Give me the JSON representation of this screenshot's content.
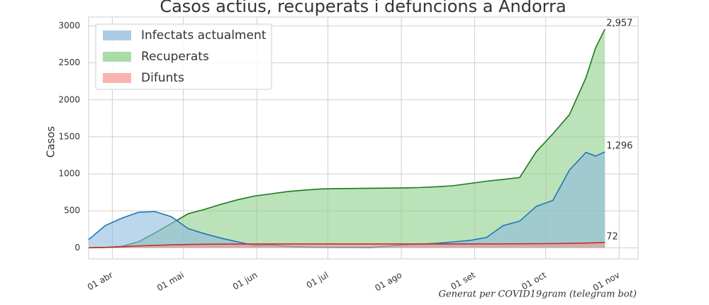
{
  "chart_data": {
    "type": "area",
    "title": "Casos actius, recuperats i defuncions a Andorra",
    "ylabel": "Casos",
    "footer": "Generat per COVID19gram (telegram bot)",
    "x": [
      "03-22",
      "03-29",
      "04-05",
      "04-12",
      "04-19",
      "04-26",
      "05-03",
      "05-10",
      "05-17",
      "05-24",
      "05-31",
      "06-07",
      "06-14",
      "06-21",
      "06-28",
      "07-05",
      "07-12",
      "07-19",
      "07-26",
      "08-02",
      "08-09",
      "08-16",
      "08-23",
      "08-30",
      "09-06",
      "09-13",
      "09-20",
      "09-27",
      "10-04",
      "10-11",
      "10-18",
      "10-22",
      "10-26"
    ],
    "series": [
      {
        "name": "Infectats actualment",
        "color": "#1f77b4",
        "fill": "#8fbbdf",
        "values": [
          110,
          300,
          400,
          480,
          490,
          420,
          260,
          190,
          130,
          80,
          30,
          40,
          20,
          10,
          8,
          5,
          5,
          3,
          20,
          40,
          50,
          60,
          80,
          100,
          140,
          300,
          360,
          560,
          640,
          1050,
          1290,
          1240,
          1296
        ],
        "end_label": "1,296"
      },
      {
        "name": "Recuperats",
        "color": "#1a7a1a",
        "fill": "#8fcf8a",
        "values": [
          0,
          5,
          20,
          80,
          200,
          330,
          460,
          520,
          590,
          650,
          700,
          730,
          760,
          780,
          795,
          800,
          802,
          805,
          807,
          810,
          815,
          825,
          840,
          870,
          900,
          925,
          950,
          1300,
          1540,
          1800,
          2300,
          2700,
          2957
        ],
        "end_label": "2,957"
      },
      {
        "name": "Difunts",
        "color": "#c0302a",
        "fill": "#f59a96",
        "values": [
          1,
          5,
          15,
          25,
          33,
          40,
          45,
          48,
          50,
          51,
          52,
          52,
          52,
          52,
          52,
          52,
          52,
          52,
          52,
          52,
          52,
          52,
          52,
          52,
          53,
          53,
          54,
          56,
          57,
          60,
          64,
          68,
          72
        ],
        "end_label": "72"
      }
    ],
    "xlim": [
      "03-22",
      "11-09"
    ],
    "xticks": [
      {
        "value": "04-01",
        "label": "01 abr"
      },
      {
        "value": "05-01",
        "label": "01 mai"
      },
      {
        "value": "06-01",
        "label": "01 jun"
      },
      {
        "value": "07-01",
        "label": "01 jul"
      },
      {
        "value": "08-01",
        "label": "01 ago"
      },
      {
        "value": "09-01",
        "label": "01 set"
      },
      {
        "value": "10-01",
        "label": "01 oct"
      },
      {
        "value": "11-01",
        "label": "01 nov"
      }
    ],
    "ylim": [
      -150,
      3120
    ],
    "yticks": [
      0,
      500,
      1000,
      1500,
      2000,
      2500,
      3000
    ],
    "grid": true,
    "legend": "upper left"
  }
}
